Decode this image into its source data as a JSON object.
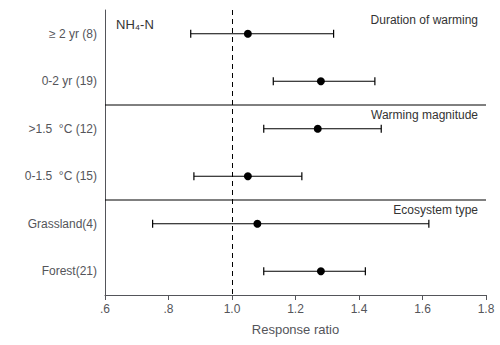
{
  "chart_data": {
    "type": "forest",
    "title": "NH₄-N",
    "xlabel": "Response ratio",
    "categories": [
      "≥ 2 yr (8)",
      "0-2 yr (19)",
      ">1.5  °C (12)",
      "0-1.5  °C (15)",
      "Grassland(4)",
      "Forest(21)"
    ],
    "values": [
      1.05,
      1.28,
      1.27,
      1.05,
      1.08,
      1.28
    ],
    "ci_low": [
      0.87,
      1.13,
      1.1,
      0.88,
      0.75,
      1.1
    ],
    "ci_high": [
      1.32,
      1.45,
      1.47,
      1.22,
      1.62,
      1.42
    ],
    "sections": [
      {
        "label": "Duration of warming",
        "categories": [
          "≥ 2 yr (8)",
          "0-2 yr (19)"
        ]
      },
      {
        "label": "Warming magnitude",
        "categories": [
          ">1.5  °C (12)",
          "0-1.5  °C (15)"
        ]
      },
      {
        "label": "Ecosystem type",
        "categories": [
          "Grassland(4)",
          "Forest(21)"
        ]
      }
    ],
    "reference_line": 1.0,
    "xlim": [
      0.6,
      1.8
    ],
    "xticks": [
      {
        "value": 0.6,
        "label": ".6"
      },
      {
        "value": 0.8,
        "label": ".8"
      },
      {
        "value": 1.0,
        "label": "1.0"
      },
      1.2,
      1.4,
      1.6,
      1.8
    ],
    "color": "black",
    "marker": "circle",
    "grid": false
  }
}
